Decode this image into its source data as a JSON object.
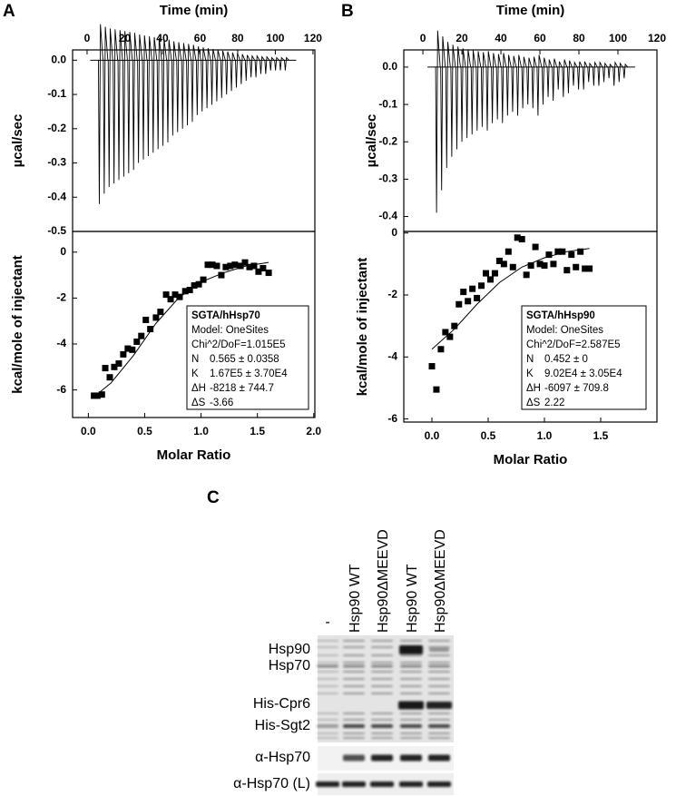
{
  "panel_labels": [
    "A",
    "B",
    "C"
  ],
  "chart_data": [
    {
      "type": "spike",
      "xlabel": "Time (min)",
      "ylabel": "µcal/sec",
      "xlim": [
        -7.7,
        121
      ],
      "xticks": [
        0,
        20,
        40,
        60,
        80,
        100,
        120
      ],
      "ylim": [
        -0.5,
        0.03
      ],
      "yticks": [
        {
          "value": 0,
          "label": "0.0"
        },
        -0.1,
        -0.2,
        -0.3,
        -0.4,
        -0.5
      ],
      "color": "#000000",
      "x": [
        6.5,
        9.1,
        11.7,
        14.3,
        16.9,
        19.5,
        22.1,
        24.7,
        27.3,
        29.9,
        32.5,
        35.1,
        37.7,
        40.3,
        42.9,
        45.5,
        48.1,
        50.7,
        53.3,
        55.9,
        58.5,
        61.1,
        63.7,
        66.3,
        68.9,
        71.5,
        74.1,
        76.7,
        79.3,
        81.9,
        84.5,
        87.1,
        89.7,
        92.3,
        94.9,
        97.5,
        100.1,
        102.7,
        105.3
      ],
      "values": [
        -0.42,
        -0.39,
        -0.37,
        -0.36,
        -0.35,
        -0.34,
        -0.33,
        -0.32,
        -0.3,
        -0.29,
        -0.28,
        -0.27,
        -0.26,
        -0.25,
        -0.24,
        -0.22,
        -0.21,
        -0.2,
        -0.19,
        -0.18,
        -0.16,
        -0.15,
        -0.14,
        -0.13,
        -0.12,
        -0.11,
        -0.1,
        -0.09,
        -0.08,
        -0.07,
        -0.06,
        -0.05,
        -0.05,
        -0.04,
        -0.04,
        -0.03,
        -0.03,
        -0.03,
        -0.03
      ]
    },
    {
      "type": "scatter",
      "xlabel": "Molar Ratio",
      "ylabel": "kcal/mole of injectant",
      "xlim": [
        -0.14,
        2.01
      ],
      "xticks": [
        {
          "value": 0,
          "label": "0.0"
        },
        0.5,
        {
          "value": 1,
          "label": "1.0"
        },
        1.5,
        {
          "value": 2,
          "label": "2.0"
        }
      ],
      "ylim": [
        -7.2,
        0.9
      ],
      "yticks": [
        0,
        -2,
        -4,
        -6
      ],
      "series": [
        {
          "color": "#000000",
          "style": "square",
          "x": [
            0.05,
            0.08,
            0.12,
            0.15,
            0.19,
            0.23,
            0.27,
            0.31,
            0.35,
            0.39,
            0.43,
            0.47,
            0.51,
            0.55,
            0.6,
            0.64,
            0.69,
            0.73,
            0.77,
            0.81,
            0.86,
            0.9,
            0.94,
            0.98,
            1.02,
            1.06,
            1.1,
            1.14,
            1.18,
            1.22,
            1.26,
            1.3,
            1.35,
            1.39,
            1.43,
            1.47,
            1.51,
            1.55,
            1.6
          ],
          "values": [
            -6.25,
            -6.25,
            -6.2,
            -5.05,
            -5.45,
            -5.0,
            -4.85,
            -4.45,
            -4.2,
            -4.25,
            -3.9,
            -3.65,
            -2.95,
            -3.35,
            -2.85,
            -2.6,
            -1.85,
            -2.05,
            -1.85,
            -1.95,
            -1.7,
            -1.65,
            -1.45,
            -1.4,
            -1.2,
            -0.55,
            -0.55,
            -0.6,
            -1.0,
            -0.65,
            -0.6,
            -0.55,
            -0.6,
            -0.45,
            -0.65,
            -0.6,
            -0.85,
            -0.7,
            -0.9
          ]
        },
        {
          "color": "#000000",
          "style": "line",
          "x": [
            0.05,
            0.2,
            0.4,
            0.6,
            0.8,
            1.0,
            1.2,
            1.4,
            1.6
          ],
          "values": [
            -6.3,
            -5.7,
            -4.5,
            -3.1,
            -2.0,
            -1.3,
            -0.9,
            -0.6,
            -0.45
          ]
        }
      ],
      "annotation": {
        "title": "SGTA/hHsp70",
        "model": "Model: OneSites",
        "chi": "Chi^2/DoF=1.015E5",
        "params": [
          [
            "N",
            "0.565 ± 0.0358"
          ],
          [
            "K",
            "1.67E5 ± 3.70E4"
          ],
          [
            "ΔH",
            "-8218 ± 744.7"
          ],
          [
            "ΔS",
            "-3.66"
          ]
        ]
      }
    },
    {
      "type": "spike",
      "xlabel": "Time (min)",
      "ylabel": "µcal/sec",
      "xlim": [
        -9.8,
        120
      ],
      "xticks": [
        0,
        20,
        40,
        60,
        80,
        100,
        120
      ],
      "ylim": [
        -0.44,
        0.046
      ],
      "yticks": [
        {
          "value": 0,
          "label": "0.0"
        },
        -0.1,
        -0.2,
        -0.3,
        -0.4
      ],
      "color": "#000000",
      "x": [
        7,
        9.6,
        12.2,
        14.8,
        17.4,
        20,
        22.6,
        25.2,
        27.8,
        30.4,
        33,
        35.6,
        38.2,
        40.8,
        43.4,
        46,
        48.6,
        51.2,
        53.8,
        56.4,
        59,
        61.6,
        64.2,
        66.8,
        69.4,
        72,
        74.6,
        77.2,
        79.8,
        82.4,
        85,
        87.6,
        90.2,
        92.8,
        95.4,
        98,
        100.6,
        103.2
      ],
      "values": [
        -0.39,
        -0.33,
        -0.27,
        -0.24,
        -0.22,
        -0.2,
        -0.19,
        -0.18,
        -0.17,
        -0.16,
        -0.17,
        -0.15,
        -0.14,
        -0.15,
        -0.13,
        -0.12,
        -0.13,
        -0.11,
        -0.1,
        -0.11,
        -0.13,
        -0.1,
        -0.08,
        -0.09,
        -0.06,
        -0.08,
        -0.07,
        -0.05,
        -0.06,
        -0.06,
        -0.04,
        -0.05,
        -0.05,
        -0.04,
        -0.03,
        -0.05,
        -0.04,
        -0.03
      ]
    },
    {
      "type": "scatter",
      "xlabel": "Molar Ratio",
      "ylabel": "kcal/mole of injectant",
      "xlim": [
        -0.25,
        2.0
      ],
      "xticks": [
        {
          "value": 0,
          "label": "0.0"
        },
        0.5,
        {
          "value": 1,
          "label": "1.0"
        },
        1.5
      ],
      "ylim": [
        -6.1,
        0.05
      ],
      "yticks": [
        0,
        -2,
        -4,
        -6
      ],
      "series": [
        {
          "color": "#000000",
          "style": "square",
          "x": [
            0.0,
            0.04,
            0.08,
            0.12,
            0.16,
            0.2,
            0.24,
            0.28,
            0.32,
            0.36,
            0.4,
            0.44,
            0.48,
            0.52,
            0.56,
            0.6,
            0.64,
            0.68,
            0.72,
            0.76,
            0.8,
            0.84,
            0.88,
            0.92,
            0.96,
            1.0,
            1.04,
            1.08,
            1.12,
            1.16,
            1.2,
            1.24,
            1.28,
            1.32,
            1.36,
            1.4
          ],
          "values": [
            -4.3,
            -5.05,
            -3.75,
            -3.2,
            -3.35,
            -3.0,
            -2.3,
            -1.9,
            -2.2,
            -1.8,
            -2.1,
            -1.7,
            -1.3,
            -1.5,
            -1.3,
            -0.9,
            -1.0,
            -0.6,
            -1.1,
            -0.15,
            -0.2,
            -1.35,
            -1.05,
            -0.45,
            -1.0,
            -1.05,
            -0.7,
            -1.0,
            -0.6,
            -0.6,
            -1.2,
            -0.7,
            -1.1,
            -0.6,
            -1.15,
            -1.15
          ]
        },
        {
          "color": "#000000",
          "style": "line",
          "x": [
            0.0,
            0.2,
            0.4,
            0.6,
            0.8,
            1.0,
            1.2,
            1.4
          ],
          "values": [
            -3.75,
            -3.1,
            -2.3,
            -1.6,
            -1.1,
            -0.8,
            -0.6,
            -0.5
          ]
        }
      ],
      "annotation": {
        "title": "SGTA/hHsp90",
        "model": "Model: OneSites",
        "chi": "Chi^2/DoF=2.587E5",
        "params": [
          [
            "N",
            "0.452 ± 0"
          ],
          [
            "K",
            "9.02E4 ± 3.05E4"
          ],
          [
            "ΔH",
            "-6097 ± 709.8"
          ],
          [
            "ΔS",
            "2.22"
          ]
        ]
      }
    }
  ],
  "gel": {
    "lanes": [
      "-",
      "Hsp90 WT",
      "Hsp90ΔMEEVD",
      "Hsp90 WT",
      "Hsp90ΔMEEVD"
    ],
    "rows": [
      "Hsp90",
      "Hsp70",
      "His-Cpr6",
      "His-Sgt2",
      "α-Hsp70",
      "α-Hsp70 (L)"
    ]
  }
}
